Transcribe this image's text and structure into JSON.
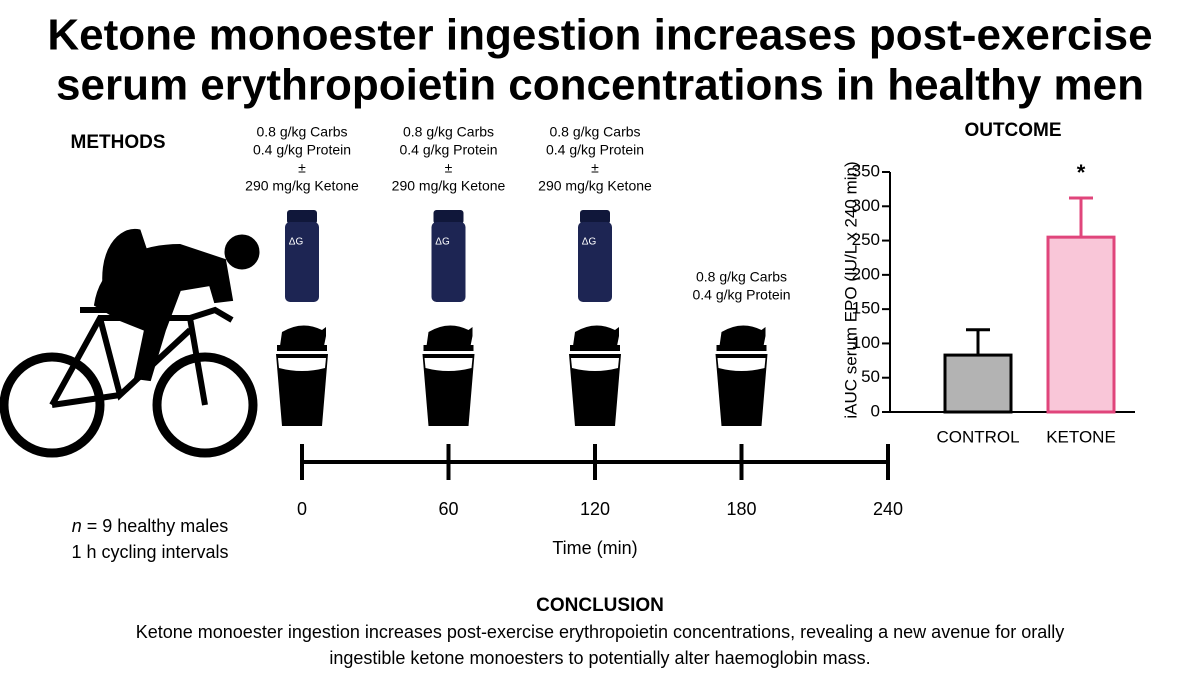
{
  "title": [
    "Ketone monoester ingestion increases post-exercise",
    "serum erythropoietin concentrations in healthy men"
  ],
  "methods": {
    "heading": "METHODS",
    "n_symbol": "n",
    "participants": "= 9 healthy males",
    "protocol": "1 h cycling intervals"
  },
  "timeline": {
    "feeds": [
      {
        "lines": [
          "0.8 g/kg Carbs",
          "0.4 g/kg Protein",
          "±",
          "290 mg/kg Ketone"
        ]
      },
      {
        "lines": [
          "0.8 g/kg Carbs",
          "0.4 g/kg Protein",
          "±",
          "290 mg/kg Ketone"
        ]
      },
      {
        "lines": [
          "0.8 g/kg Carbs",
          "0.4 g/kg Protein",
          "±",
          "290 mg/kg Ketone"
        ]
      },
      {
        "lines": [
          "0.8 g/kg Carbs",
          "0.4 g/kg Protein"
        ]
      }
    ],
    "bottle_logo": "ΔG",
    "xlim": [
      0,
      240
    ],
    "xticks": [
      0,
      60,
      120,
      180,
      240
    ],
    "xlabel": "Time (min)"
  },
  "chart_data": {
    "type": "bar",
    "title": "OUTCOME",
    "categories": [
      "CONTROL",
      "KETONE"
    ],
    "values": [
      83,
      255
    ],
    "errors": [
      37,
      57
    ],
    "colors": [
      "#b3b3b3",
      "#f9c6d8"
    ],
    "edge_colors": [
      "#000000",
      "#e0457b"
    ],
    "significance": [
      null,
      "*"
    ],
    "ylabel": "iAUC serum EPO (IU/L x 240 min)",
    "ylim": [
      0,
      350
    ],
    "yticks": [
      0,
      50,
      100,
      150,
      200,
      250,
      300,
      350
    ]
  },
  "conclusion": {
    "heading": "CONCLUSION",
    "lines": [
      "Ketone monoester ingestion increases post-exercise erythropoietin concentrations, revealing a new avenue for orally",
      "ingestible ketone monoesters to potentially alter haemoglobin mass."
    ]
  }
}
